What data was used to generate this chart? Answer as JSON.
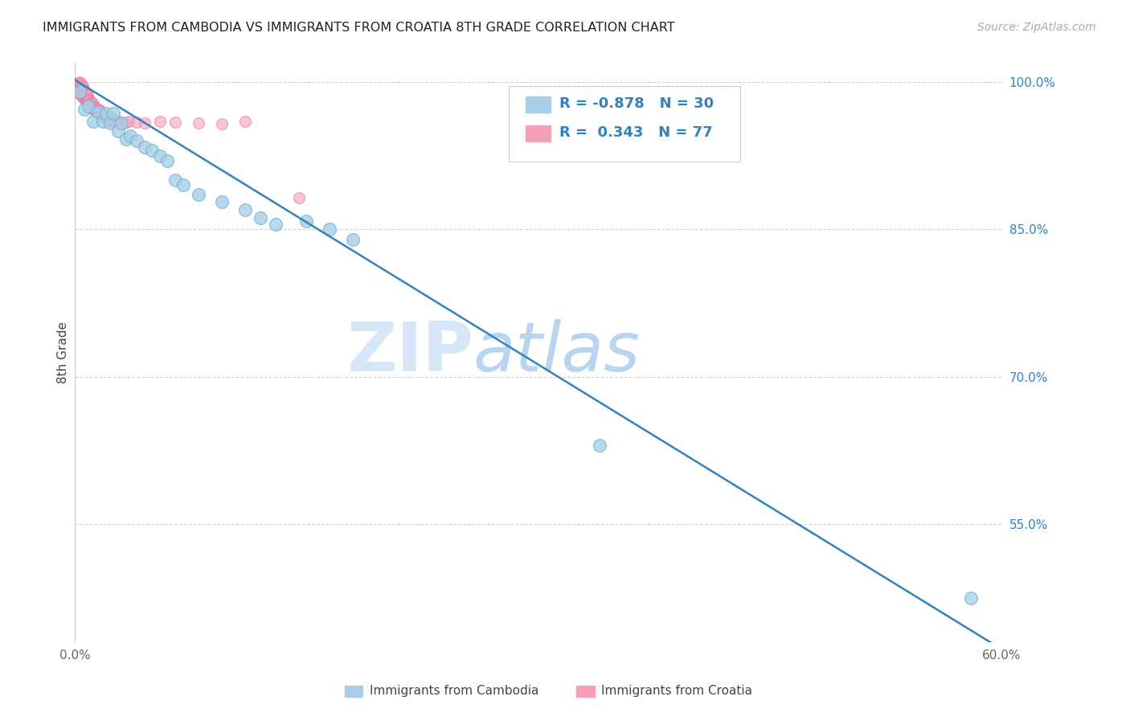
{
  "title": "IMMIGRANTS FROM CAMBODIA VS IMMIGRANTS FROM CROATIA 8TH GRADE CORRELATION CHART",
  "source": "Source: ZipAtlas.com",
  "ylabel_label": "8th Grade",
  "xlim": [
    0.0,
    0.6
  ],
  "ylim": [
    0.43,
    1.02
  ],
  "ytick_positions": [
    1.0,
    0.85,
    0.7,
    0.55
  ],
  "yticklabels": [
    "100.0%",
    "85.0%",
    "70.0%",
    "55.0%"
  ],
  "blue_color": "#a8cfe8",
  "blue_edge_color": "#6aafd6",
  "pink_color": "#f4a0b5",
  "pink_edge_color": "#e87099",
  "line_color": "#3182bd",
  "text_color": "#3182bd",
  "watermark_zip": "ZIP",
  "watermark_atlas": "atlas",
  "blue_scatter_x": [
    0.003,
    0.006,
    0.009,
    0.012,
    0.015,
    0.018,
    0.02,
    0.023,
    0.025,
    0.028,
    0.03,
    0.033,
    0.036,
    0.04,
    0.045,
    0.05,
    0.055,
    0.06,
    0.065,
    0.07,
    0.08,
    0.095,
    0.11,
    0.12,
    0.13,
    0.15,
    0.165,
    0.18,
    0.34,
    0.58
  ],
  "blue_scatter_y": [
    0.99,
    0.972,
    0.975,
    0.96,
    0.97,
    0.96,
    0.968,
    0.958,
    0.968,
    0.95,
    0.958,
    0.942,
    0.945,
    0.94,
    0.934,
    0.93,
    0.925,
    0.92,
    0.9,
    0.895,
    0.885,
    0.878,
    0.87,
    0.862,
    0.855,
    0.858,
    0.85,
    0.84,
    0.63,
    0.475
  ],
  "pink_scatter_x": [
    0.001,
    0.001,
    0.001,
    0.002,
    0.002,
    0.002,
    0.002,
    0.003,
    0.003,
    0.003,
    0.003,
    0.003,
    0.004,
    0.004,
    0.004,
    0.004,
    0.004,
    0.005,
    0.005,
    0.005,
    0.005,
    0.005,
    0.006,
    0.006,
    0.006,
    0.006,
    0.007,
    0.007,
    0.007,
    0.007,
    0.008,
    0.008,
    0.008,
    0.008,
    0.009,
    0.009,
    0.009,
    0.01,
    0.01,
    0.01,
    0.011,
    0.011,
    0.011,
    0.012,
    0.012,
    0.012,
    0.013,
    0.013,
    0.014,
    0.014,
    0.015,
    0.015,
    0.016,
    0.016,
    0.017,
    0.017,
    0.018,
    0.019,
    0.02,
    0.021,
    0.022,
    0.023,
    0.024,
    0.025,
    0.026,
    0.028,
    0.03,
    0.032,
    0.035,
    0.04,
    0.045,
    0.055,
    0.065,
    0.08,
    0.095,
    0.11,
    0.145
  ],
  "pink_scatter_y": [
    0.992,
    0.995,
    0.998,
    0.99,
    0.993,
    0.996,
    0.999,
    0.988,
    0.991,
    0.994,
    0.997,
    1.0,
    0.986,
    0.989,
    0.992,
    0.995,
    0.998,
    0.984,
    0.987,
    0.99,
    0.993,
    0.996,
    0.982,
    0.985,
    0.988,
    0.991,
    0.98,
    0.983,
    0.986,
    0.989,
    0.978,
    0.981,
    0.984,
    0.987,
    0.976,
    0.979,
    0.982,
    0.975,
    0.978,
    0.981,
    0.973,
    0.976,
    0.979,
    0.972,
    0.975,
    0.978,
    0.971,
    0.974,
    0.97,
    0.973,
    0.969,
    0.972,
    0.968,
    0.971,
    0.967,
    0.97,
    0.966,
    0.965,
    0.964,
    0.963,
    0.962,
    0.961,
    0.96,
    0.962,
    0.961,
    0.96,
    0.959,
    0.958,
    0.96,
    0.959,
    0.958,
    0.96,
    0.959,
    0.958,
    0.957,
    0.96,
    0.882
  ],
  "trendline_x": [
    0.0,
    0.603
  ],
  "trendline_y": [
    1.002,
    0.42
  ]
}
